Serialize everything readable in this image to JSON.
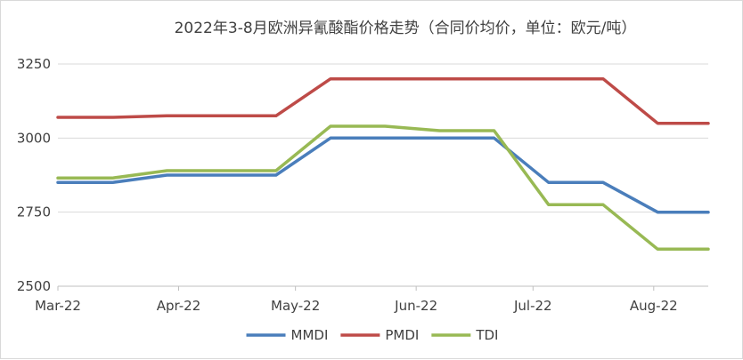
{
  "chart_data": {
    "type": "line",
    "title": "2022年3-8月欧洲异氰酸酯价格走势（合同价均价，单位：欧元/吨）",
    "xlabel": "",
    "ylabel": "",
    "ylim": [
      2500,
      3250
    ],
    "yticks": [
      2500,
      2750,
      3000,
      3250
    ],
    "x_tick_labels": [
      "Mar-22",
      "Apr-22",
      "May-22",
      "Jun-22",
      "Jul-22",
      "Aug-22"
    ],
    "x_tick_dates": [
      "2022-03-01",
      "2022-04-01",
      "2022-05-01",
      "2022-06-01",
      "2022-07-01",
      "2022-08-01"
    ],
    "xlim": [
      "2022-03-01",
      "2022-08-15"
    ],
    "grid": true,
    "legend_position": "bottom",
    "series": [
      {
        "name": "MMDI",
        "color": "#4a7ebb",
        "points": [
          [
            "2022-03-01",
            2850
          ],
          [
            "2022-03-15",
            2850
          ],
          [
            "2022-03-29",
            2875
          ],
          [
            "2022-04-12",
            2875
          ],
          [
            "2022-04-26",
            2875
          ],
          [
            "2022-05-10",
            3000
          ],
          [
            "2022-05-24",
            3000
          ],
          [
            "2022-06-07",
            3000
          ],
          [
            "2022-06-21",
            3000
          ],
          [
            "2022-07-05",
            2850
          ],
          [
            "2022-07-19",
            2850
          ],
          [
            "2022-08-02",
            2750
          ],
          [
            "2022-08-15",
            2750
          ]
        ]
      },
      {
        "name": "PMDI",
        "color": "#be4b48",
        "points": [
          [
            "2022-03-01",
            3070
          ],
          [
            "2022-03-15",
            3070
          ],
          [
            "2022-03-29",
            3075
          ],
          [
            "2022-04-12",
            3075
          ],
          [
            "2022-04-26",
            3075
          ],
          [
            "2022-05-10",
            3200
          ],
          [
            "2022-05-24",
            3200
          ],
          [
            "2022-06-07",
            3200
          ],
          [
            "2022-06-21",
            3200
          ],
          [
            "2022-07-05",
            3200
          ],
          [
            "2022-07-19",
            3200
          ],
          [
            "2022-08-02",
            3050
          ],
          [
            "2022-08-15",
            3050
          ]
        ]
      },
      {
        "name": "TDI",
        "color": "#98b954",
        "points": [
          [
            "2022-03-01",
            2865
          ],
          [
            "2022-03-15",
            2865
          ],
          [
            "2022-03-29",
            2890
          ],
          [
            "2022-04-12",
            2890
          ],
          [
            "2022-04-26",
            2890
          ],
          [
            "2022-05-10",
            3040
          ],
          [
            "2022-05-24",
            3040
          ],
          [
            "2022-06-07",
            3025
          ],
          [
            "2022-06-21",
            3025
          ],
          [
            "2022-07-05",
            2775
          ],
          [
            "2022-07-19",
            2775
          ],
          [
            "2022-08-02",
            2625
          ],
          [
            "2022-08-15",
            2625
          ]
        ]
      }
    ]
  }
}
